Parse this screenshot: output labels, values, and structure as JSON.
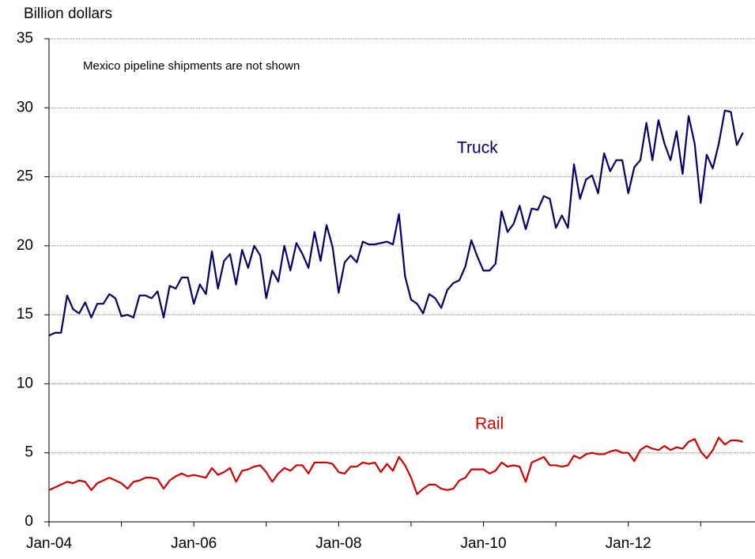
{
  "chart_data": {
    "type": "line",
    "ylabel": "Billion dollars",
    "annotation": "Mexico pipeline shipments are not shown",
    "categories": [
      "Jan-04",
      null,
      null,
      null,
      null,
      null,
      null,
      null,
      null,
      null,
      null,
      null,
      null,
      null,
      null,
      null,
      null,
      null,
      null,
      null,
      null,
      null,
      null,
      null,
      "Jan-06",
      null,
      null,
      null,
      null,
      null,
      null,
      null,
      null,
      null,
      null,
      null,
      null,
      null,
      null,
      null,
      null,
      null,
      null,
      null,
      null,
      null,
      null,
      null,
      "Jan-08",
      null,
      null,
      null,
      null,
      null,
      null,
      null,
      null,
      null,
      null,
      null,
      null,
      null,
      null,
      null,
      null,
      null,
      null,
      null,
      null,
      null,
      null,
      null,
      "Jan-10",
      null,
      null,
      null,
      null,
      null,
      null,
      null,
      null,
      null,
      null,
      null,
      null,
      null,
      null,
      null,
      null,
      null,
      null,
      null,
      null,
      null,
      null,
      null,
      "Jan-12",
      null,
      null,
      null,
      null,
      null,
      null,
      null,
      null,
      null,
      null,
      null,
      null,
      null,
      null,
      null,
      null,
      null,
      null,
      null
    ],
    "series": [
      {
        "name": "Truck",
        "color": "#000066",
        "values": [
          13.5,
          13.7,
          13.7,
          16.4,
          15.4,
          15.1,
          15.9,
          14.8,
          15.8,
          15.8,
          16.5,
          16.2,
          14.9,
          15.0,
          14.8,
          16.4,
          16.4,
          16.2,
          16.7,
          14.8,
          17.1,
          16.9,
          17.7,
          17.7,
          15.8,
          17.2,
          16.5,
          19.6,
          16.9,
          18.9,
          19.4,
          17.2,
          19.7,
          18.4,
          20.0,
          19.3,
          16.2,
          18.2,
          17.4,
          20.0,
          18.2,
          20.2,
          19.4,
          18.4,
          21.0,
          18.9,
          21.5,
          19.9,
          16.6,
          18.8,
          19.3,
          18.8,
          20.3,
          20.1,
          20.1,
          20.2,
          20.3,
          20.1,
          22.3,
          17.8,
          16.1,
          15.8,
          15.1,
          16.5,
          16.2,
          15.5,
          16.8,
          17.3,
          17.5,
          18.5,
          20.4,
          19.2,
          18.2,
          18.2,
          18.7,
          22.5,
          21.0,
          21.6,
          22.9,
          21.2,
          22.7,
          22.6,
          23.6,
          23.4,
          21.3,
          22.2,
          21.3,
          25.9,
          23.4,
          24.8,
          25.1,
          23.8,
          26.7,
          25.4,
          26.2,
          26.2,
          23.8,
          25.7,
          26.2,
          28.9,
          26.2,
          29.1,
          27.4,
          26.2,
          28.3,
          25.2,
          29.4,
          27.4,
          23.1,
          26.6,
          25.6,
          27.4,
          29.8,
          29.7,
          27.3,
          28.2
        ]
      },
      {
        "name": "Rail",
        "color": "#cc0000",
        "values": [
          2.3,
          2.5,
          2.7,
          2.9,
          2.8,
          3.0,
          2.9,
          2.3,
          2.8,
          3.0,
          3.2,
          3.0,
          2.8,
          2.4,
          2.9,
          3.0,
          3.2,
          3.2,
          3.1,
          2.4,
          3.0,
          3.3,
          3.5,
          3.3,
          3.4,
          3.3,
          3.2,
          3.9,
          3.4,
          3.6,
          3.9,
          2.9,
          3.7,
          3.8,
          4.0,
          4.1,
          3.6,
          2.9,
          3.5,
          3.9,
          3.7,
          4.1,
          4.1,
          3.5,
          4.3,
          4.3,
          4.3,
          4.2,
          3.6,
          3.5,
          4.0,
          4.0,
          4.3,
          4.2,
          4.3,
          3.6,
          4.2,
          3.7,
          4.7,
          4.1,
          3.2,
          2.0,
          2.4,
          2.7,
          2.7,
          2.4,
          2.3,
          2.4,
          3.0,
          3.2,
          3.8,
          3.8,
          3.8,
          3.5,
          3.7,
          4.3,
          4.0,
          4.1,
          4.0,
          2.9,
          4.3,
          4.5,
          4.7,
          4.1,
          4.1,
          4.0,
          4.1,
          4.8,
          4.6,
          4.9,
          5.0,
          4.9,
          4.9,
          5.1,
          5.2,
          5.0,
          5.0,
          4.4,
          5.2,
          5.5,
          5.3,
          5.2,
          5.5,
          5.2,
          5.4,
          5.3,
          5.8,
          6.0,
          5.1,
          4.6,
          5.2,
          6.1,
          5.6,
          5.9,
          5.9,
          5.8
        ]
      }
    ],
    "ylim": [
      0,
      35
    ],
    "yticks": [
      0,
      5,
      10,
      15,
      20,
      25,
      30,
      35
    ],
    "grid": true
  }
}
